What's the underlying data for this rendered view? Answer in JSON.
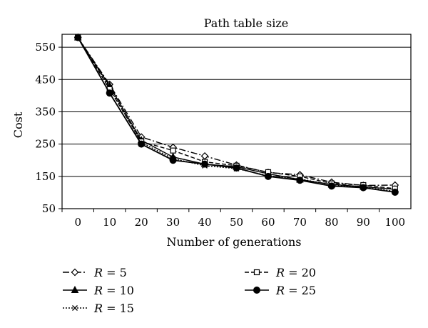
{
  "chart_data": {
    "type": "line",
    "title": "Path table size",
    "xlabel": "Number of generations",
    "ylabel": "Cost",
    "x": [
      0,
      10,
      20,
      30,
      40,
      50,
      60,
      70,
      80,
      90,
      100
    ],
    "yticks": [
      50,
      150,
      250,
      350,
      450,
      550
    ],
    "ylim": [
      50,
      590
    ],
    "xlim": [
      -5,
      105
    ],
    "grid": "horizontal",
    "legend_position": "bottom",
    "series": [
      {
        "name": "R = 5",
        "legend_var": "R",
        "legend_val": "= 5",
        "marker": "diamond",
        "dash": "9,3,2,3",
        "values": [
          580,
          435,
          272,
          240,
          213,
          185,
          162,
          155,
          132,
          122,
          123
        ]
      },
      {
        "name": "R = 10",
        "legend_var": "R",
        "legend_val": "= 10",
        "marker": "triangle",
        "dash": "",
        "values": [
          580,
          430,
          262,
          210,
          188,
          180,
          158,
          140,
          125,
          118,
          110
        ]
      },
      {
        "name": "R = 15",
        "legend_var": "R",
        "legend_val": "= 15",
        "marker": "x",
        "dash": "2,2",
        "values": [
          580,
          425,
          255,
          205,
          183,
          174,
          152,
          142,
          124,
          116,
          104
        ]
      },
      {
        "name": "R = 20",
        "legend_var": "R",
        "legend_val": "= 20",
        "marker": "square",
        "dash": "6,3",
        "values": [
          580,
          420,
          258,
          230,
          195,
          183,
          163,
          150,
          128,
          123,
          112
        ]
      },
      {
        "name": "R = 25",
        "legend_var": "R",
        "legend_val": "= 25",
        "marker": "circle",
        "dash": "",
        "values": [
          580,
          408,
          250,
          200,
          188,
          176,
          150,
          138,
          120,
          115,
          101
        ]
      }
    ]
  }
}
